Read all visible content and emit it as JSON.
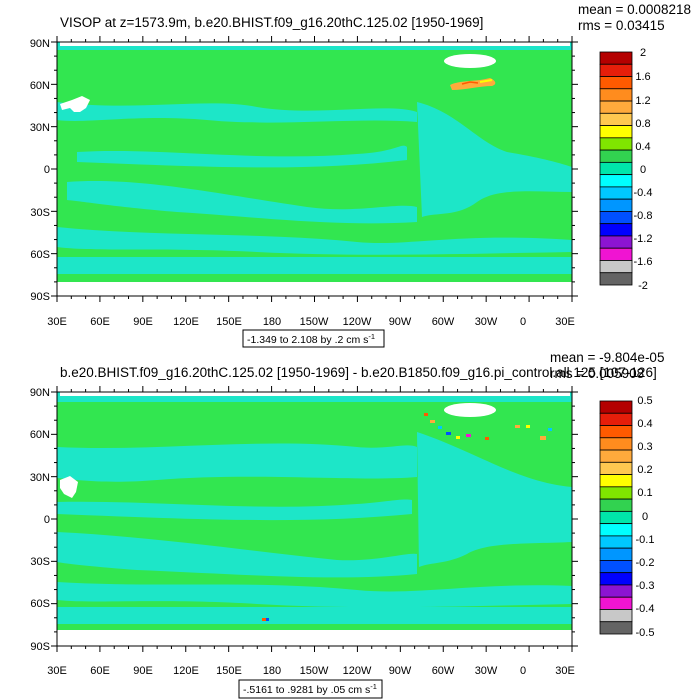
{
  "panels": [
    {
      "title": "VISOP at z=1573.9m, b.e20.BHIST.f09_g16.20thC.125.02 [1950-1969]",
      "mean_text": "mean = 0.0008218",
      "rms_text": "rms = 0.03415",
      "range_text": "-1.349 to 2.108 by .2 cm s",
      "range_sup": "-1",
      "colorbar_labels": [
        "2",
        "1.6",
        "1.2",
        "0.8",
        "0.4",
        "0",
        "-0.4",
        "-0.8",
        "-1.2",
        "-1.6",
        "-2"
      ]
    },
    {
      "title": "b.e20.BHIST.f09_g16.20thC.125.02 [1950-1969] - b.e20.B1850.f09_g16.pi_control.all.125 [107-126]",
      "mean_text": "mean = -9.804e-05",
      "rms_text": "rms = 0.005908",
      "range_text": "-.5161 to .9281 by .05 cm s",
      "range_sup": "-1",
      "colorbar_labels": [
        "0.5",
        "0.4",
        "0.3",
        "0.2",
        "0.1",
        "0",
        "-0.1",
        "-0.2",
        "-0.3",
        "-0.4",
        "-0.5"
      ]
    }
  ],
  "lat_labels": [
    "90N",
    "60N",
    "30N",
    "0",
    "30S",
    "60S",
    "90S"
  ],
  "lon_labels": [
    "30E",
    "60E",
    "90E",
    "120E",
    "150E",
    "180",
    "150W",
    "120W",
    "90W",
    "60W",
    "30W",
    "0",
    "30E"
  ],
  "colorbar_colors": [
    "#b40000",
    "#e61e0a",
    "#ff5a00",
    "#ff8c1e",
    "#ffaa3c",
    "#ffc850",
    "#ffff00",
    "#80e600",
    "#32d250",
    "#00e6aa",
    "#00ffff",
    "#00c8ff",
    "#0096ff",
    "#0050ff",
    "#0000ff",
    "#8c14d2",
    "#f014d2",
    "#c8c8c8",
    "#646464"
  ],
  "map_colors": {
    "green": "#32e650",
    "cyan": "#1de6c8",
    "land": "#ffffff"
  }
}
